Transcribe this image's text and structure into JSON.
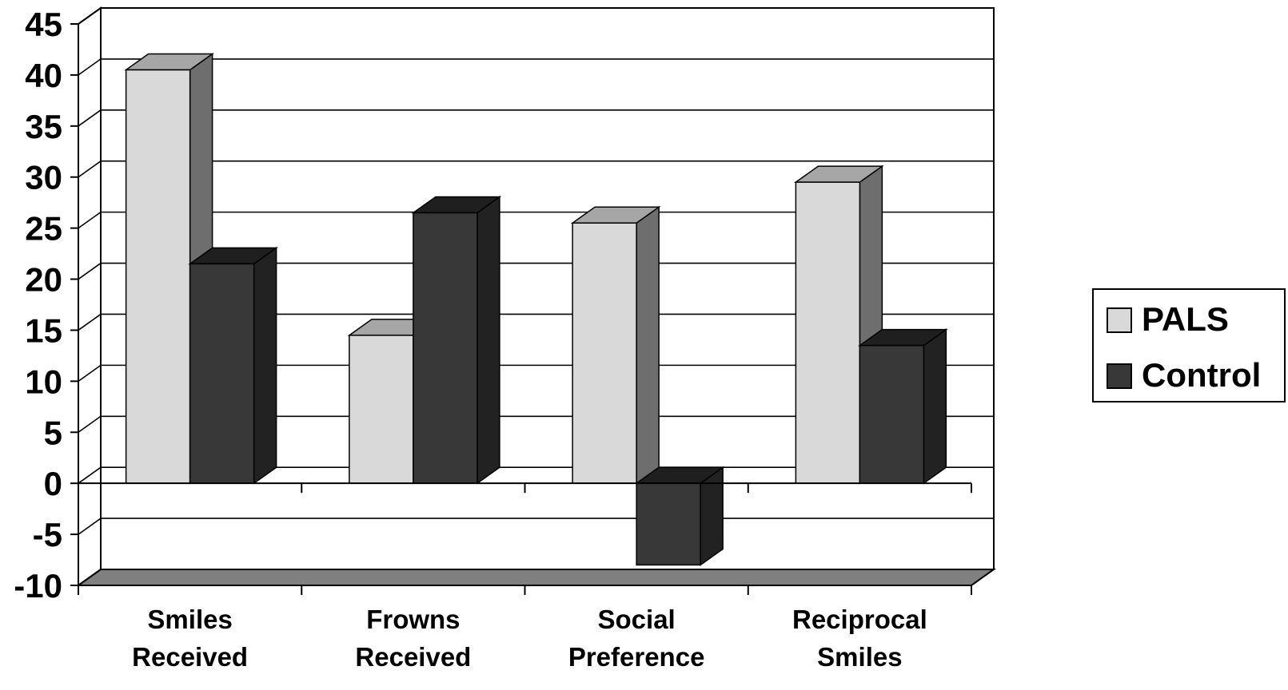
{
  "chart_data": {
    "type": "bar",
    "title": "",
    "xlabel": "",
    "ylabel": "",
    "categories": [
      [
        "Smiles",
        "Received"
      ],
      [
        "Frowns",
        "Received"
      ],
      [
        "Social",
        "Preference"
      ],
      [
        "Reciprocal",
        "Smiles"
      ]
    ],
    "series": [
      {
        "name": "PALS",
        "values": [
          40.5,
          14.5,
          25.5,
          29.5
        ]
      },
      {
        "name": "Control",
        "values": [
          21.5,
          26.5,
          -8,
          13.5
        ]
      }
    ],
    "ylim": [
      -10,
      45
    ],
    "yticks": [
      45,
      40,
      35,
      30,
      25,
      20,
      15,
      10,
      5,
      0,
      -5,
      -10
    ],
    "grid": true,
    "legend_position": "right",
    "style": "3d-column"
  },
  "colors": {
    "PALS": {
      "front": "#d9d9d9",
      "top": "#a6a6a6",
      "side": "#6e6e6e"
    },
    "Control": {
      "front": "#383838",
      "top": "#1f1f1f",
      "side": "#222222"
    },
    "floor": "#808080",
    "grid": "#000000",
    "text": "#000000"
  }
}
